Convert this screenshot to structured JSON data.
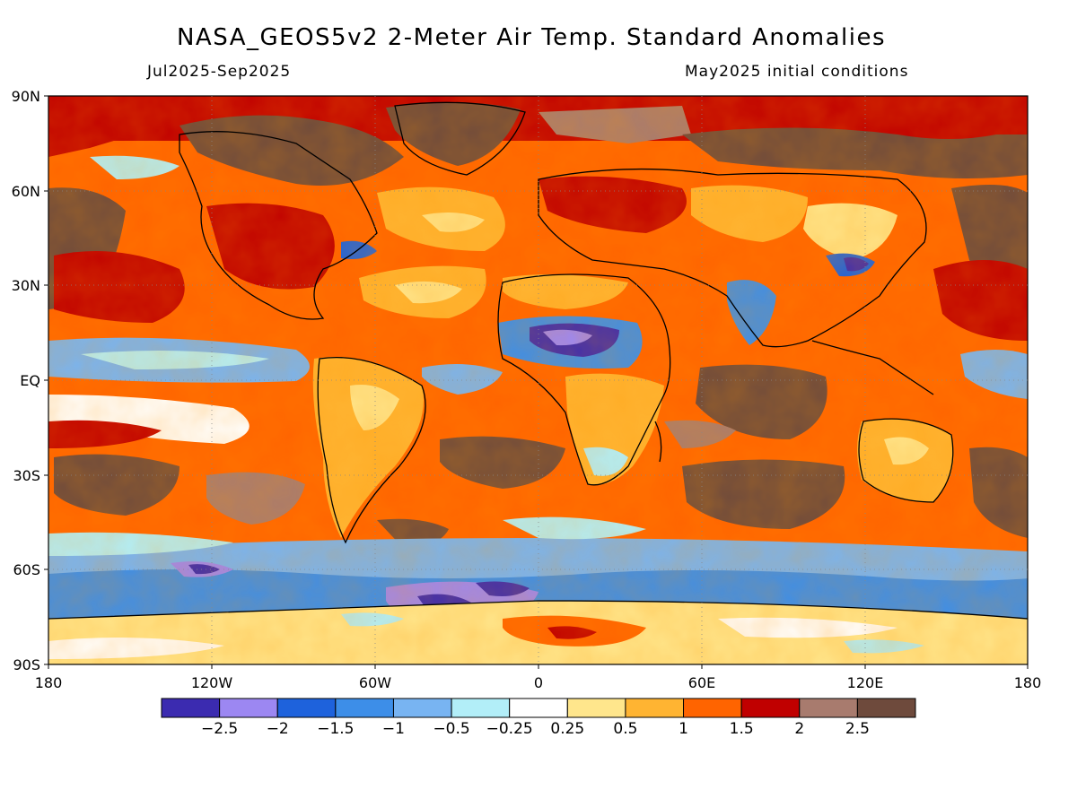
{
  "header": {
    "title": "NASA_GEOS5v2 2-Meter Air Temp. Standard Anomalies",
    "period": "Jul2025-Sep2025",
    "init": "May2025 initial conditions"
  },
  "axes": {
    "lat_labels": [
      "90N",
      "60N",
      "30N",
      "EQ",
      "30S",
      "60S",
      "90S"
    ],
    "lon_labels": [
      "180",
      "120W",
      "60W",
      "0",
      "60E",
      "120E",
      "180"
    ]
  },
  "colorbar": {
    "colors": [
      "#3b2bb0",
      "#9c87f2",
      "#1e62dc",
      "#3d8ee8",
      "#78b4f2",
      "#b2eef8",
      "#ffffff",
      "#ffe68c",
      "#ffb432",
      "#ff6400",
      "#c00000",
      "#a87b6e",
      "#6e4a3c"
    ],
    "labels": [
      "-2.5",
      "-2",
      "-1.5",
      "-1",
      "-0.5",
      "-0.25",
      "0.25",
      "0.5",
      "1",
      "1.5",
      "2",
      "2.5"
    ]
  },
  "map_fill": {
    "ocean_base": "#ff6400",
    "land_outline": "#000000"
  }
}
